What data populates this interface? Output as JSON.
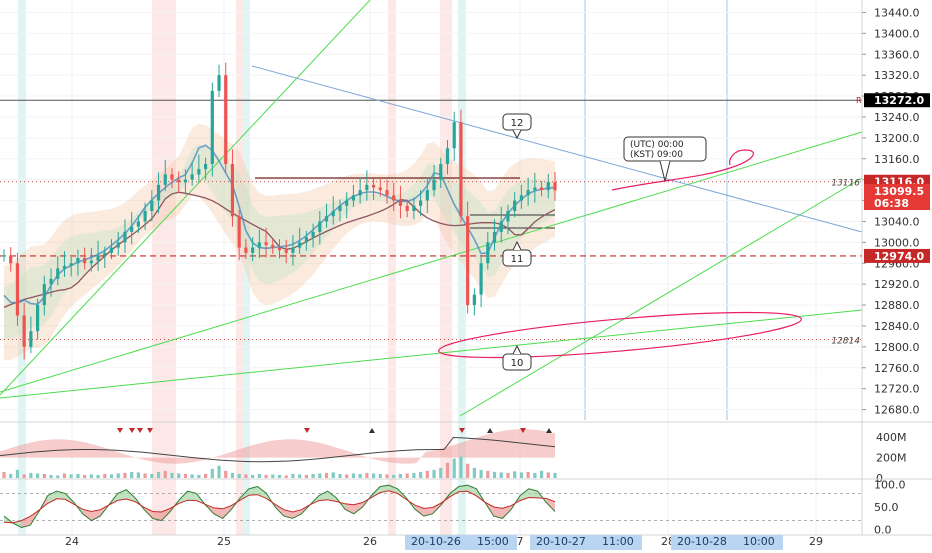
{
  "chart_data": [
    {
      "type": "candlestick",
      "ylim": [
        12660,
        13460
      ],
      "price_axis": {
        "ticks": [
          13440,
          13400,
          13360,
          13320,
          13280,
          13240,
          13200,
          13160,
          13120,
          13080,
          13040,
          13000,
          12960,
          12920,
          12880,
          12840,
          12800,
          12760,
          12720,
          12680
        ],
        "tick_labels": [
          "13440.0",
          "13400.0",
          "13360.0",
          "13320.0",
          "13280.0",
          "13240.0",
          "13200.0",
          "13160.0",
          "13120.0",
          "13080.0",
          "13040.0",
          "13000.0",
          "12960.0",
          "12920.0",
          "12880.0",
          "12840.0",
          "12800.0",
          "12760.0",
          "12720.0",
          "12680.0"
        ]
      },
      "price_badges": [
        {
          "label": "13272.0",
          "value": 13272,
          "color": "#000000",
          "prefix": "R"
        },
        {
          "label": "13116.0",
          "value": 13116,
          "color": "#c62828"
        },
        {
          "label": "13099.5",
          "value": 13099.5,
          "color": "#e53935"
        },
        {
          "label": "06:38",
          "value": 13079,
          "color": "#e53935"
        },
        {
          "label": "12974.0",
          "value": 12974,
          "color": "#c62828"
        }
      ],
      "level_labels": [
        {
          "label": "13116",
          "value": 13116
        },
        {
          "label": "12814",
          "value": 12814
        }
      ],
      "callouts": [
        {
          "label": "12",
          "anchor_value": 13180
        },
        {
          "label": "11",
          "anchor_value": 13030
        },
        {
          "label": "10",
          "anchor_value": 12808
        }
      ],
      "time_note": {
        "line1": "(UTC) 00:00",
        "line2": "(KST) 09:00"
      },
      "close_series": [
        12975,
        12960,
        12860,
        12800,
        12830,
        12880,
        12920,
        12930,
        12950,
        12955,
        12960,
        12970,
        12960,
        12965,
        12975,
        12980,
        12990,
        13000,
        13020,
        13030,
        13040,
        13060,
        13080,
        13110,
        13130,
        13120,
        13115,
        13120,
        13130,
        13140,
        13150,
        13290,
        13320,
        13150,
        13050,
        12990,
        12980,
        12990,
        13000,
        12995,
        12990,
        12985,
        12980,
        12990,
        13000,
        13010,
        13020,
        13040,
        13050,
        13060,
        13070,
        13080,
        13090,
        13100,
        13110,
        13105,
        13100,
        13090,
        13080,
        13070,
        13060,
        13070,
        13080,
        13100,
        13120,
        13150,
        13180,
        13230,
        13050,
        12880,
        12900,
        12960,
        13000,
        13020,
        13040,
        13060,
        13080,
        13090,
        13100,
        13105,
        13100,
        13115,
        13099.5
      ]
    },
    {
      "type": "bar",
      "ylim": [
        0,
        520
      ],
      "axis": {
        "ticks": [
          400,
          200,
          0
        ],
        "tick_labels": [
          "400M",
          "200M",
          "0"
        ]
      },
      "volume_series": [
        60,
        40,
        80,
        35,
        50,
        45,
        40,
        30,
        25,
        45,
        35,
        40,
        30,
        35,
        30,
        40,
        35,
        45,
        50,
        60,
        55,
        45,
        40,
        60,
        70,
        50,
        45,
        40,
        35,
        30,
        40,
        90,
        120,
        70,
        50,
        40,
        35,
        30,
        40,
        30,
        35,
        30,
        25,
        40,
        35,
        30,
        40,
        45,
        50,
        55,
        40,
        35,
        45,
        40,
        50,
        45,
        40,
        35,
        30,
        40,
        45,
        50,
        60,
        70,
        80,
        100,
        150,
        190,
        210,
        140,
        100,
        80,
        70,
        60,
        55,
        50,
        65,
        55,
        60,
        50,
        70,
        55,
        50
      ]
    },
    {
      "type": "line",
      "ylim": [
        -5,
        105
      ],
      "axis": {
        "ticks": [
          100,
          50,
          0
        ],
        "tick_labels": [
          "100.0",
          "50.0",
          "0.0"
        ]
      },
      "k_series": [
        30,
        15,
        5,
        10,
        40,
        75,
        85,
        80,
        60,
        35,
        20,
        30,
        55,
        80,
        88,
        70,
        45,
        25,
        20,
        40,
        65,
        85,
        80,
        55,
        35,
        25,
        45,
        70,
        90,
        95,
        80,
        50,
        30,
        25,
        35,
        55,
        75,
        85,
        70,
        45,
        35,
        50,
        75,
        95,
        98,
        90,
        70,
        45,
        30,
        35,
        55,
        80,
        95,
        98,
        90,
        60,
        30,
        25,
        45,
        75,
        90,
        85,
        60,
        40
      ]
    }
  ],
  "x_axis": {
    "tick_labels": [
      "24",
      "25",
      "26",
      "7",
      "28",
      "29"
    ],
    "highlights": [
      {
        "label": "20-10-26",
        "time": "15:00"
      },
      {
        "label": "20-10-27",
        "time": "11:00"
      },
      {
        "label": "20-10-28",
        "time": "10:00"
      }
    ]
  },
  "colors": {
    "up": "#26a69a",
    "down": "#ef5350",
    "trend_green": "#4cdc4c",
    "trend_blue": "#7aa6d8",
    "sma": "#8e5560",
    "bb": "#f2c6a0",
    "cloud": "#c8e3c8",
    "dashed_red": "#c62828",
    "ellipse": "#e91e63",
    "volume_line": "#444444",
    "macd_up": "#a5d6a7",
    "macd_down": "#ef9a9a"
  }
}
